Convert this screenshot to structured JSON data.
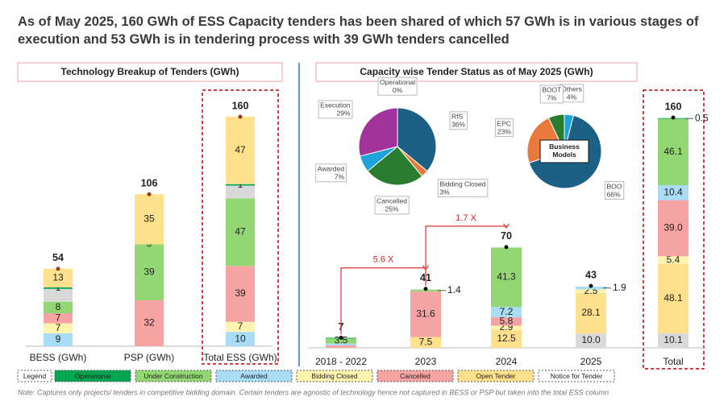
{
  "title": "As of May 2025, 160 GWh of ESS Capacity tenders has been shared of which 57 GWh is in various stages of execution and 53 GWh is in tendering process with 39 GWh tenders cancelled",
  "note": "Note: Captures only projects/ tenders in competitive bidding domain. Certain tenders are agnostic of technology hence not captured in BESS or PSP but taken into the total ESS column",
  "legend": {
    "title": "Legend"
  },
  "chart_data": [
    {
      "type": "stacked_bar",
      "title": "Technology Breakup of Tenders  (GWh)",
      "categories": [
        "BESS (GWh)",
        "PSP (GWh)",
        "Total ESS (GWh)"
      ],
      "ylim": [
        0,
        160
      ],
      "totals": [
        54,
        106,
        160
      ],
      "series": [
        {
          "name": "Awarded",
          "color": "#a9dcf5",
          "values": [
            9,
            0,
            10
          ],
          "value_labels": [
            "9",
            null,
            "10"
          ]
        },
        {
          "name": "Bidding Closed",
          "color": "#fff3b0",
          "values": [
            7,
            0,
            7
          ],
          "value_labels": [
            "7",
            null,
            "7"
          ]
        },
        {
          "name": "Cancelled",
          "color": "#f5a3a3",
          "values": [
            7,
            32,
            39
          ],
          "value_labels": [
            "7",
            "32",
            "39"
          ]
        },
        {
          "name": "Under Construction",
          "color": "#93d774",
          "values": [
            8,
            39,
            47
          ],
          "value_labels": [
            "8",
            "39",
            "47"
          ]
        },
        {
          "name": "Notice for Tender",
          "color": "#d9d9d9",
          "values": [
            9,
            0,
            9
          ],
          "value_labels": [
            null,
            null,
            null
          ]
        },
        {
          "name": "Operational",
          "color": "#00a651",
          "values": [
            1,
            0,
            1
          ],
          "value_labels": [
            "1",
            "0",
            "1"
          ]
        },
        {
          "name": "Open Tender",
          "color": "#ffe08c",
          "values": [
            13,
            35,
            47
          ],
          "value_labels": [
            "13",
            "35",
            "47"
          ]
        }
      ]
    },
    {
      "type": "pie",
      "categories": [
        "Operational",
        "RfS",
        "Bidding Closed",
        "Cancelled",
        "Awarded",
        "Execution"
      ],
      "values": [
        0,
        36,
        3,
        25,
        7,
        29
      ],
      "value_labels": [
        "0%",
        "36%",
        "3%",
        "25%",
        "7%",
        "29%"
      ],
      "colors": [
        "#00a651",
        "#1c6185",
        "#ea7a3c",
        "#2a7d2e",
        "#1fa3db",
        "#a2329c"
      ]
    },
    {
      "type": "pie",
      "center_label": "Business Models",
      "categories": [
        "Others",
        "BOO",
        "EPC",
        "BOOT"
      ],
      "values": [
        4,
        66,
        23,
        7
      ],
      "value_labels": [
        "4%",
        "66%",
        "23%",
        "7%"
      ],
      "colors": [
        "#1fa3db",
        "#1c6185",
        "#ea7a3c",
        "#2a7d2e"
      ]
    },
    {
      "type": "stacked_bar",
      "title": "Capacity wise Tender Status as of May 2025 (GWh)",
      "categories": [
        "2018 - 2022",
        "2023",
        "2024",
        "2025",
        "Total"
      ],
      "ylim": [
        0,
        160
      ],
      "totals": [
        7,
        41,
        70,
        43,
        160
      ],
      "annotations": [
        "5.6 X",
        "1.7 X"
      ],
      "series": [
        {
          "name": "Notice for Tender",
          "color": "#d9d9d9",
          "values": [
            0.1,
            0,
            0,
            10.0,
            10.1
          ],
          "value_labels": [
            null,
            null,
            null,
            "10.0",
            "10.1"
          ]
        },
        {
          "name": "Open Tender",
          "color": "#ffe08c",
          "values": [
            0,
            7.5,
            12.5,
            28.1,
            48.1
          ],
          "value_labels": [
            null,
            "7.5",
            "12.5",
            "28.1",
            "48.1"
          ]
        },
        {
          "name": "Bidding Closed",
          "color": "#fff3b0",
          "values": [
            0,
            0,
            2.9,
            2.5,
            5.4
          ],
          "value_labels": [
            null,
            null,
            "2.9",
            "2.5",
            "5.4"
          ]
        },
        {
          "name": "Cancelled",
          "color": "#f5a3a3",
          "values": [
            1.6,
            31.6,
            5.8,
            0,
            39.0
          ],
          "value_labels": [
            null,
            "31.6",
            "5.8",
            null,
            "39.0"
          ]
        },
        {
          "name": "Awarded",
          "color": "#a9dcf5",
          "values": [
            1.3,
            0,
            7.2,
            1.9,
            10.4
          ],
          "value_labels": [
            null,
            null,
            "7.2",
            "1.9",
            "10.4"
          ]
        },
        {
          "name": "Under Construction",
          "color": "#93d774",
          "values": [
            3.5,
            1.4,
            41.3,
            0,
            46.1
          ],
          "value_labels": [
            "3.5",
            "1.4",
            "41.3",
            null,
            "46.1"
          ]
        },
        {
          "name": "Operational",
          "color": "#00a651",
          "values": [
            0.5,
            0,
            0,
            0,
            0.5
          ],
          "value_labels": [
            null,
            null,
            null,
            null,
            "0.5"
          ]
        }
      ]
    }
  ]
}
